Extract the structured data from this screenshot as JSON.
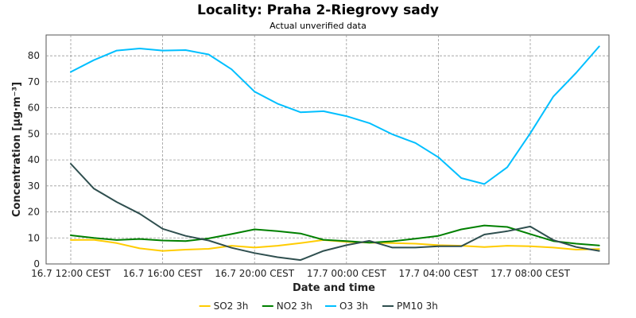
{
  "chart_data": {
    "type": "line",
    "title": "Locality: Praha 2-Riegrovy sady",
    "subtitle": "Actual unverified data",
    "xlabel": "Date and time",
    "ylabel": "Concentration [µg·m⁻³]",
    "x_ticks": [
      "16.7 12:00 CEST",
      "16.7 16:00 CEST",
      "16.7 20:00 CEST",
      "17.7 00:00 CEST",
      "17.7 04:00 CEST",
      "17.7 08:00 CEST"
    ],
    "y_ticks": [
      "0",
      "10",
      "20",
      "30",
      "40",
      "50",
      "60",
      "70",
      "80"
    ],
    "ylim": [
      0,
      88
    ],
    "grid": true,
    "legend_position": "bottom",
    "x": [
      "16.7 12:00",
      "16.7 13:00",
      "16.7 14:00",
      "16.7 15:00",
      "16.7 16:00",
      "16.7 17:00",
      "16.7 18:00",
      "16.7 19:00",
      "16.7 20:00",
      "16.7 21:00",
      "16.7 22:00",
      "16.7 23:00",
      "17.7 00:00",
      "17.7 01:00",
      "17.7 02:00",
      "17.7 03:00",
      "17.7 04:00",
      "17.7 05:00",
      "17.7 06:00",
      "17.7 07:00",
      "17.7 08:00",
      "17.7 09:00",
      "17.7 10:00",
      "17.7 11:00"
    ],
    "series": [
      {
        "name": "SO2 3h",
        "color": "#ffcc00",
        "values": [
          9.2,
          9.3,
          8.0,
          6.0,
          5.0,
          5.5,
          5.8,
          7.0,
          6.3,
          7.0,
          8.0,
          9.2,
          8.5,
          8.2,
          8.0,
          7.8,
          7.2,
          7.0,
          6.5,
          7.0,
          6.8,
          6.3,
          5.5,
          5.7
        ]
      },
      {
        "name": "NO2 3h",
        "color": "#008000",
        "values": [
          11.0,
          10.0,
          9.2,
          9.6,
          9.0,
          8.8,
          9.8,
          11.5,
          13.3,
          12.6,
          11.7,
          9.3,
          8.8,
          8.2,
          8.7,
          9.7,
          10.8,
          13.3,
          14.8,
          14.2,
          11.5,
          8.8,
          7.8,
          7.1
        ]
      },
      {
        "name": "O3 3h",
        "color": "#00bfff",
        "values": [
          73.8,
          78.3,
          82.0,
          82.8,
          82.0,
          82.2,
          80.5,
          74.8,
          66.2,
          61.6,
          58.3,
          58.7,
          56.8,
          54.1,
          49.8,
          46.5,
          41.0,
          33.0,
          30.7,
          37.2,
          50.2,
          64.3,
          73.5,
          83.6
        ]
      },
      {
        "name": "PM10 3h",
        "color": "#2f4f4f",
        "values": [
          38.5,
          29.0,
          23.8,
          19.3,
          13.5,
          10.8,
          9.0,
          6.2,
          4.2,
          2.6,
          1.5,
          5.0,
          7.2,
          8.9,
          6.3,
          6.3,
          6.8,
          6.8,
          11.3,
          12.6,
          14.4,
          9.2,
          6.5,
          5.0
        ]
      }
    ]
  }
}
